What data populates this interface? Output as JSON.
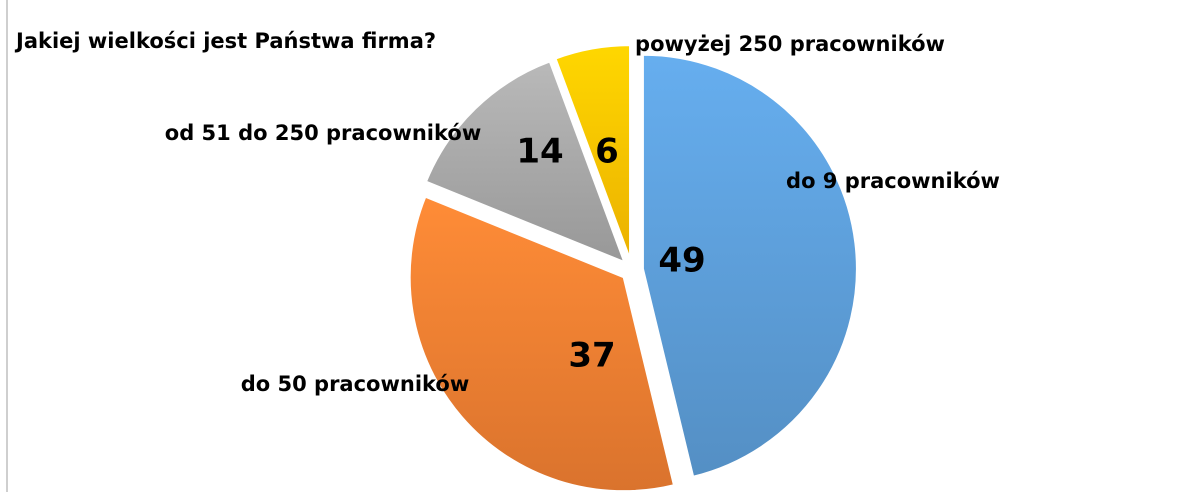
{
  "chart_data": {
    "type": "pie",
    "title": "Jakiej wielkości jest Państwa firma?",
    "categories": [
      "do 9 pracowników",
      "do 50 pracowników",
      "od 51 do 250 pracowników",
      "powyżej 250 pracowników"
    ],
    "values": [
      49,
      37,
      14,
      6
    ],
    "colors": [
      "#5b9bd5",
      "#ed7d31",
      "#a5a5a5",
      "#ffc000"
    ]
  }
}
